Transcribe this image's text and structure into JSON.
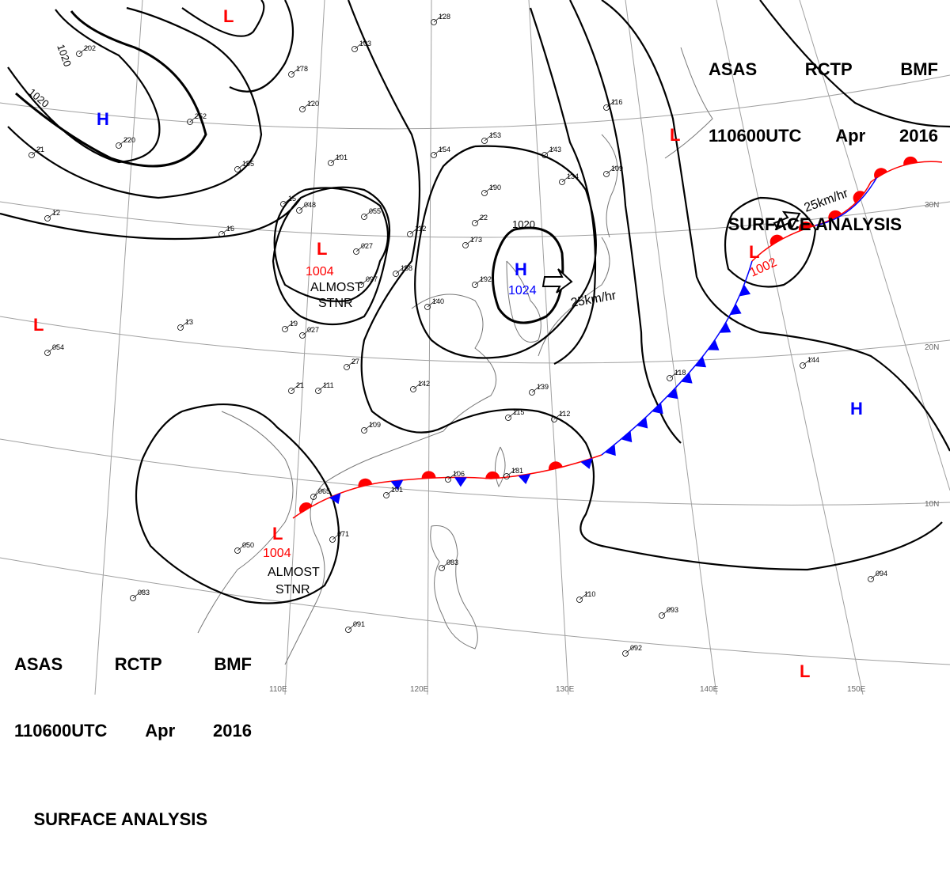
{
  "header": {
    "line1": [
      "ASAS",
      "RCTP",
      "BMF"
    ],
    "line2": [
      "110600UTC",
      "Apr",
      "2016"
    ],
    "line3": "SURFACE ANALYSIS"
  },
  "colors": {
    "low": "#ff0000",
    "high": "#0000ff",
    "isobar": "#000000",
    "grid": "#999999",
    "coast": "#777777",
    "warm_front": "#ff0000",
    "cold_front": "#0000ff"
  },
  "pressure_centers": [
    {
      "id": "low-nw",
      "type": "L",
      "value": ""
    },
    {
      "id": "high-west",
      "type": "H",
      "value": ""
    },
    {
      "id": "low-mongolia",
      "type": "L",
      "value": "1004",
      "note": [
        "ALMOST",
        "STNR"
      ]
    },
    {
      "id": "low-west",
      "type": "L",
      "value": ""
    },
    {
      "id": "high-china",
      "type": "H",
      "value": "1024",
      "motion": "25km/hr"
    },
    {
      "id": "low-pacific",
      "type": "L",
      "value": "1002",
      "motion": "25km/hr"
    },
    {
      "id": "low-ne",
      "type": "L",
      "value": ""
    },
    {
      "id": "high-pacific",
      "type": "H",
      "value": ""
    },
    {
      "id": "low-south",
      "type": "L",
      "value": "1004",
      "note": [
        "ALMOST",
        "STNR"
      ]
    },
    {
      "id": "low-se",
      "type": "L",
      "value": ""
    }
  ],
  "isobar_labels": [
    "1020",
    "1020",
    "1020"
  ],
  "lat_labels": [
    "30N",
    "20N",
    "10N"
  ],
  "lon_labels": [
    "110E",
    "120E",
    "130E",
    "140E",
    "150E"
  ],
  "station_labels": [
    "128",
    "202",
    "178",
    "103",
    "120",
    "252",
    "220",
    "155",
    "101",
    "048",
    "055",
    "027",
    "097",
    "158",
    "112",
    "173",
    "190",
    "154",
    "153",
    "143",
    "134",
    "109",
    "116",
    "192",
    "140",
    "027",
    "111",
    "118",
    "139",
    "142",
    "109",
    "115",
    "112",
    "083",
    "181",
    "106",
    "101",
    "065",
    "071",
    "050",
    "083",
    "110",
    "093",
    "092",
    "091",
    "094",
    "144",
    "054",
    "22",
    "27",
    "21",
    "19",
    "13",
    "15",
    "16",
    "21",
    "12"
  ]
}
